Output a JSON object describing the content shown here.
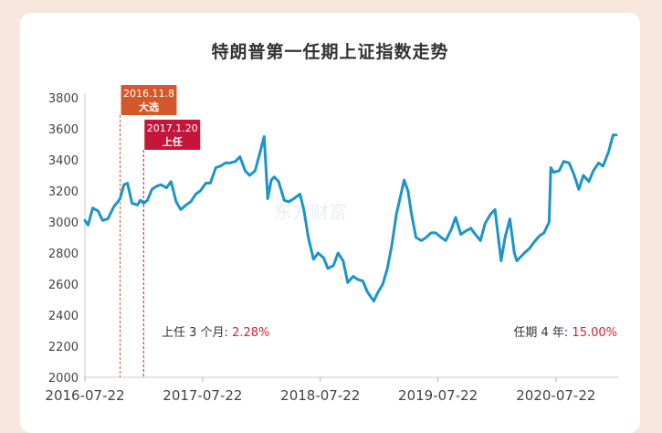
{
  "chart_data": {
    "type": "line",
    "title": "特朗普第一任期上证指数走势",
    "xlabel": "",
    "ylabel": "",
    "ylim": [
      2000,
      3800
    ],
    "xlim": [
      "2016-07-22",
      "2021-01-31"
    ],
    "yticks": [
      "2000",
      "2200",
      "2400",
      "2600",
      "2800",
      "3000",
      "3200",
      "3400",
      "3600",
      "3800"
    ],
    "xticks": [
      "2016-07-22",
      "2017-07-22",
      "2018-07-22",
      "2019-07-22",
      "2020-07-22"
    ],
    "grid": false,
    "series_color": "#1b95c8",
    "series": [
      {
        "x": [
          "2016-07-22",
          "2016-08-01",
          "2016-08-15",
          "2016-09-01",
          "2016-09-15",
          "2016-10-01",
          "2016-10-20",
          "2016-11-01",
          "2016-11-08",
          "2016-11-20",
          "2016-12-01",
          "2016-12-15",
          "2017-01-01",
          "2017-01-10",
          "2017-01-20",
          "2017-02-01",
          "2017-02-15",
          "2017-03-01",
          "2017-03-15",
          "2017-04-01",
          "2017-04-15",
          "2017-05-01",
          "2017-05-15",
          "2017-06-01",
          "2017-06-15",
          "2017-07-01",
          "2017-07-15",
          "2017-08-01",
          "2017-08-15",
          "2017-09-01",
          "2017-09-15",
          "2017-10-01",
          "2017-10-15",
          "2017-11-01",
          "2017-11-15",
          "2017-12-01",
          "2017-12-15",
          "2018-01-01",
          "2018-01-15",
          "2018-01-29",
          "2018-02-09",
          "2018-02-20",
          "2018-03-01",
          "2018-03-15",
          "2018-04-01",
          "2018-04-15",
          "2018-05-01",
          "2018-05-20",
          "2018-06-01",
          "2018-06-15",
          "2018-07-01",
          "2018-07-15",
          "2018-08-01",
          "2018-08-15",
          "2018-09-01",
          "2018-09-15",
          "2018-10-01",
          "2018-10-15",
          "2018-11-01",
          "2018-11-15",
          "2018-12-01",
          "2018-12-15",
          "2019-01-04",
          "2019-01-15",
          "2019-02-01",
          "2019-02-15",
          "2019-03-01",
          "2019-03-15",
          "2019-04-08",
          "2019-04-20",
          "2019-05-01",
          "2019-05-15",
          "2019-06-01",
          "2019-06-15",
          "2019-07-01",
          "2019-07-15",
          "2019-08-01",
          "2019-08-15",
          "2019-09-01",
          "2019-09-15",
          "2019-10-01",
          "2019-10-15",
          "2019-11-01",
          "2019-11-15",
          "2019-12-01",
          "2019-12-15",
          "2020-01-01",
          "2020-01-15",
          "2020-02-03",
          "2020-02-15",
          "2020-03-01",
          "2020-03-15",
          "2020-03-23",
          "2020-04-01",
          "2020-04-15",
          "2020-05-01",
          "2020-05-15",
          "2020-06-01",
          "2020-06-15",
          "2020-07-01",
          "2020-07-06",
          "2020-07-15",
          "2020-08-01",
          "2020-08-15",
          "2020-09-01",
          "2020-09-15",
          "2020-10-01",
          "2020-10-15",
          "2020-11-01",
          "2020-11-15",
          "2020-12-01",
          "2020-12-15",
          "2021-01-01",
          "2021-01-15",
          "2021-01-25"
        ],
        "y": [
          3010,
          2980,
          3090,
          3070,
          3010,
          3020,
          3100,
          3130,
          3150,
          3240,
          3250,
          3120,
          3110,
          3140,
          3120,
          3140,
          3210,
          3230,
          3240,
          3220,
          3260,
          3130,
          3080,
          3110,
          3130,
          3180,
          3200,
          3250,
          3250,
          3350,
          3360,
          3380,
          3380,
          3390,
          3420,
          3330,
          3300,
          3330,
          3440,
          3550,
          3150,
          3270,
          3290,
          3260,
          3140,
          3130,
          3150,
          3180,
          3080,
          2900,
          2760,
          2800,
          2770,
          2700,
          2720,
          2800,
          2750,
          2610,
          2650,
          2630,
          2620,
          2550,
          2490,
          2540,
          2600,
          2700,
          2850,
          3050,
          3270,
          3200,
          3050,
          2900,
          2880,
          2900,
          2930,
          2930,
          2900,
          2880,
          2950,
          3030,
          2920,
          2940,
          2960,
          2920,
          2880,
          2990,
          3050,
          3080,
          2750,
          2900,
          3020,
          2800,
          2750,
          2770,
          2800,
          2830,
          2870,
          2910,
          2930,
          3000,
          3350,
          3320,
          3330,
          3390,
          3380,
          3310,
          3210,
          3300,
          3260,
          3330,
          3380,
          3360,
          3450,
          3560,
          3560
        ]
      }
    ],
    "annotations": [
      {
        "date": "2016-11-08",
        "label_line1": "2016.11.8",
        "label_line2": "大选",
        "color": "#d5582c"
      },
      {
        "date": "2017-01-20",
        "label_line1": "2017.1.20",
        "label_line2": "上任",
        "color": "#c5153a"
      }
    ],
    "notes": [
      {
        "label": "上任 3 个月:",
        "value": "2.28%"
      },
      {
        "label": "任期 4 年:",
        "value": "15.00%"
      }
    ],
    "note_value_color": "#d81e3a",
    "watermark": "东方财富"
  }
}
